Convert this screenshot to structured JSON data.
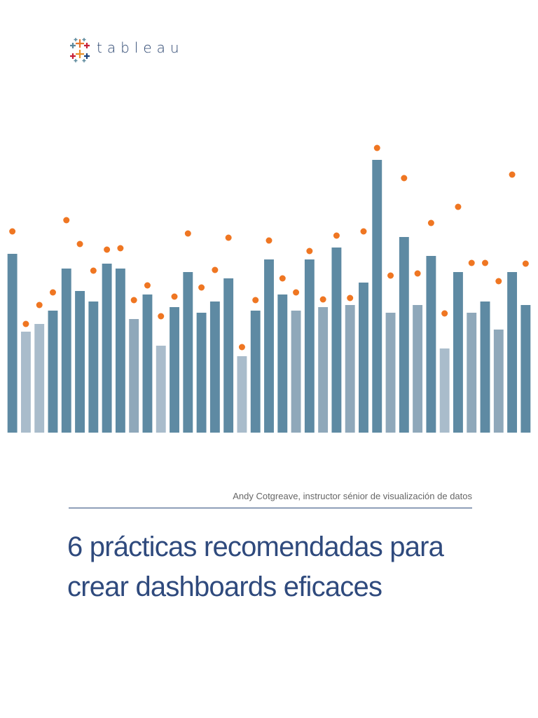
{
  "header": {
    "brand": "tableau"
  },
  "chart_data": {
    "type": "bar",
    "values": [
      255,
      144,
      155,
      174,
      234,
      202,
      187,
      241,
      234,
      162,
      197,
      124,
      179,
      229,
      171,
      187,
      220,
      109,
      174,
      247,
      197,
      174,
      247,
      179,
      264,
      182,
      214,
      389,
      171,
      279,
      182,
      252,
      120,
      229,
      171,
      187,
      147,
      229,
      182
    ],
    "markers": [
      287,
      155,
      182,
      200,
      303,
      269,
      231,
      261,
      263,
      189,
      210,
      166,
      194,
      284,
      207,
      232,
      278,
      122,
      189,
      274,
      220,
      200,
      259,
      190,
      281,
      192,
      287,
      406,
      224,
      363,
      227,
      299,
      170,
      322,
      242,
      242,
      216,
      368,
      241
    ],
    "colors": [
      "#5e8aa3",
      "#a9bccb",
      "#a9bccb",
      "#5e8aa3",
      "#5e8aa3",
      "#5e8aa3",
      "#5e8aa3",
      "#5e8aa3",
      "#5e8aa3",
      "#8fa8ba",
      "#5e8aa3",
      "#a9bccb",
      "#5e8aa3",
      "#5e8aa3",
      "#5e8aa3",
      "#5e8aa3",
      "#5e8aa3",
      "#a9bccb",
      "#5e8aa3",
      "#5e8aa3",
      "#5e8aa3",
      "#8fa8ba",
      "#5e8aa3",
      "#8fa8ba",
      "#5e8aa3",
      "#8fa8ba",
      "#5e8aa3",
      "#5e8aa3",
      "#8fa8ba",
      "#5e8aa3",
      "#8fa8ba",
      "#5e8aa3",
      "#a9bccb",
      "#5e8aa3",
      "#8fa8ba",
      "#5e8aa3",
      "#8fa8ba",
      "#5e8aa3",
      "#5e8aa3"
    ],
    "marker_color": "#ef7622",
    "ylim": [
      0,
      420
    ]
  },
  "author": "Andy Cotgreave, instructor sénior de visualización de datos",
  "title": [
    "6 prácticas recomendadas para",
    "crear dashboards eficaces"
  ]
}
